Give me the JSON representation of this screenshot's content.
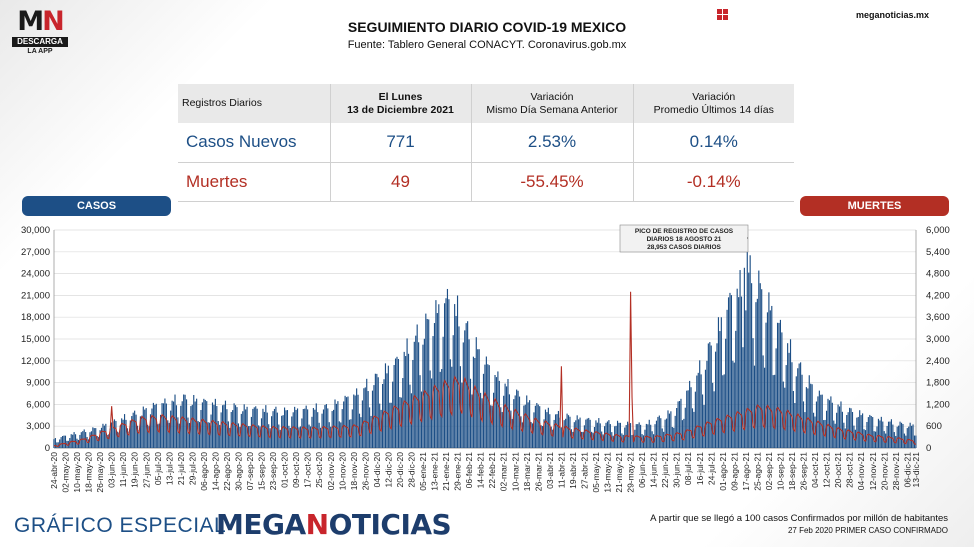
{
  "logo": {
    "mark_left": "M",
    "mark_right": "N",
    "band": "DESCARGA",
    "sub": "LA APP"
  },
  "header": {
    "title": "SEGUIMIENTO DIARIO COVID-19 MEXICO",
    "subtitle": "Fuente: Tablero General CONACYT. Coronavirus.gob.mx",
    "site": "meganoticias.mx"
  },
  "table": {
    "col0": "Registros Diarios",
    "col1_line1": "El Lunes",
    "col1_line2": "13 de Diciembre 2021",
    "col2_line1": "Variación",
    "col2_line2": "Mismo Día Semana Anterior",
    "col3_line1": "Variación",
    "col3_line2": "Promedio Últimos 14 días",
    "rows": [
      {
        "label": "Casos Nuevos",
        "value": "771",
        "var_week": "2.53%",
        "var_avg": "0.14%"
      },
      {
        "label": "Muertes",
        "value": "49",
        "var_week": "-55.45%",
        "var_avg": "-0.14%"
      }
    ]
  },
  "pills": {
    "casos": "CASOS",
    "muertes": "MUERTES"
  },
  "colors": {
    "casos": "#1d4f86",
    "muertes": "#b32f24",
    "brand_accent": "#c8252c"
  },
  "chart_data": {
    "type": "bar",
    "series": [
      {
        "name": "CASOS",
        "axis": "left",
        "type": "bar"
      },
      {
        "name": "MUERTES",
        "axis": "right",
        "type": "line"
      }
    ],
    "ylim_left": [
      0,
      30000
    ],
    "ylim_right": [
      0,
      6000
    ],
    "yticks_left": [
      "0",
      "3,000",
      "6,000",
      "9,000",
      "12,000",
      "15,000",
      "18,000",
      "21,000",
      "24,000",
      "27,000",
      "30,000"
    ],
    "yticks_right": [
      "0",
      "600",
      "1,200",
      "1,800",
      "2,400",
      "3,000",
      "3,600",
      "4,200",
      "4,800",
      "5,400",
      "6,000"
    ],
    "x_start": "2020-04-24",
    "x_end": "2021-12-13",
    "xticks": [
      "24-abr-20",
      "02-may-20",
      "10-may-20",
      "18-may-20",
      "26-may-20",
      "03-jun-20",
      "11-jun-20",
      "19-jun-20",
      "27-jun-20",
      "05-jul-20",
      "13-jul-20",
      "21-jul-20",
      "29-jul-20",
      "06-ago-20",
      "14-ago-20",
      "22-ago-20",
      "30-ago-20",
      "07-sep-20",
      "15-sep-20",
      "23-sep-20",
      "01-oct-20",
      "09-oct-20",
      "17-oct-20",
      "25-oct-20",
      "02-nov-20",
      "10-nov-20",
      "18-nov-20",
      "26-nov-20",
      "04-dic-20",
      "12-dic-20",
      "20-dic-20",
      "28-dic-20",
      "05-ene-21",
      "13-ene-21",
      "21-ene-21",
      "29-ene-21",
      "06-feb-21",
      "14-feb-21",
      "22-feb-21",
      "02-mar-21",
      "10-mar-21",
      "18-mar-21",
      "26-mar-21",
      "03-abr-21",
      "11-abr-21",
      "19-abr-21",
      "27-abr-21",
      "05-may-21",
      "13-may-21",
      "21-may-21",
      "29-may-21",
      "06-jun-21",
      "14-jun-21",
      "22-jun-21",
      "30-jun-21",
      "08-jul-21",
      "16-jul-21",
      "24-jul-21",
      "01-ago-21",
      "09-ago-21",
      "17-ago-21",
      "25-ago-21",
      "02-sep-21",
      "10-sep-21",
      "18-sep-21",
      "26-sep-21",
      "04-oct-21",
      "12-oct-21",
      "20-oct-21",
      "28-oct-21",
      "04-nov-21",
      "12-nov-21",
      "20-nov-21",
      "28-nov-21",
      "06-dic-21",
      "13-dic-21"
    ],
    "casos_weekly_level": [
      [
        0,
        1200
      ],
      [
        30,
        2600
      ],
      [
        50,
        4000
      ],
      [
        70,
        5500
      ],
      [
        90,
        6500
      ],
      [
        110,
        5800
      ],
      [
        130,
        5200
      ],
      [
        160,
        4800
      ],
      [
        190,
        5300
      ],
      [
        210,
        7000
      ],
      [
        240,
        11500
      ],
      [
        262,
        17000
      ],
      [
        275,
        19500
      ],
      [
        290,
        14000
      ],
      [
        305,
        9500
      ],
      [
        325,
        6500
      ],
      [
        345,
        4500
      ],
      [
        365,
        3800
      ],
      [
        385,
        3300
      ],
      [
        410,
        3000
      ],
      [
        430,
        4800
      ],
      [
        445,
        9000
      ],
      [
        460,
        15000
      ],
      [
        470,
        19500
      ],
      [
        480,
        21500
      ],
      [
        484,
        23000
      ],
      [
        500,
        17000
      ],
      [
        515,
        11000
      ],
      [
        530,
        7000
      ],
      [
        550,
        5000
      ],
      [
        570,
        3800
      ],
      [
        585,
        3200
      ],
      [
        598,
        2900
      ]
    ],
    "muertes_weekly_level": [
      [
        0,
        60
      ],
      [
        20,
        220
      ],
      [
        40,
        500
      ],
      [
        60,
        750
      ],
      [
        75,
        800
      ],
      [
        95,
        720
      ],
      [
        120,
        620
      ],
      [
        150,
        520
      ],
      [
        180,
        500
      ],
      [
        210,
        560
      ],
      [
        230,
        900
      ],
      [
        250,
        1250
      ],
      [
        270,
        1600
      ],
      [
        282,
        1750
      ],
      [
        295,
        1400
      ],
      [
        315,
        1000
      ],
      [
        335,
        700
      ],
      [
        355,
        520
      ],
      [
        375,
        400
      ],
      [
        395,
        300
      ],
      [
        415,
        280
      ],
      [
        435,
        380
      ],
      [
        455,
        650
      ],
      [
        475,
        880
      ],
      [
        490,
        1050
      ],
      [
        505,
        950
      ],
      [
        525,
        700
      ],
      [
        545,
        480
      ],
      [
        565,
        330
      ],
      [
        585,
        250
      ],
      [
        598,
        180
      ]
    ],
    "muertes_spikes": [
      {
        "day": 40,
        "value": 1150
      },
      {
        "day": 352,
        "value": 2250
      },
      {
        "day": 400,
        "value": 4300
      },
      {
        "day": 401,
        "value": 1400
      }
    ],
    "peak_casos": {
      "day": 481,
      "value": 28953
    },
    "annotation": [
      "PICO DE REGISTRO DE CASOS",
      "DIARIOS 18 AGOSTO 21",
      "28,953 CASOS DIARIOS"
    ]
  },
  "footer": {
    "left": "GRÁFICO ESPECIAL",
    "brand_a": "MEGA",
    "brand_b": "N",
    "brand_c": "OTICIAS",
    "note1": "A partir que se llegó a 100 casos Confirmados por millón de habitantes",
    "note2": "27 Feb 2020 PRIMER CASO CONFIRMADO"
  }
}
